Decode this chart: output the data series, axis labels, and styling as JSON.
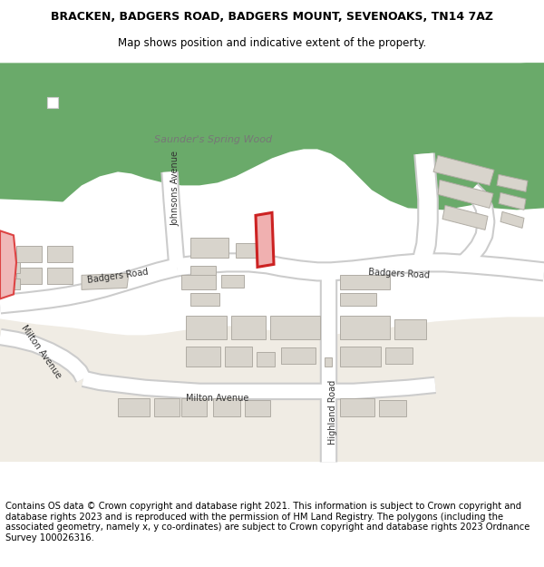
{
  "title_line1": "BRACKEN, BADGERS ROAD, BADGERS MOUNT, SEVENOAKS, TN14 7AZ",
  "title_line2": "Map shows position and indicative extent of the property.",
  "footer_text": "Contains OS data © Crown copyright and database right 2021. This information is subject to Crown copyright and database rights 2023 and is reproduced with the permission of HM Land Registry. The polygons (including the associated geometry, namely x, y co-ordinates) are subject to Crown copyright and database rights 2023 Ordnance Survey 100026316.",
  "map_bg_color": "#e8e4dd",
  "road_color": "#ffffff",
  "road_outline_color": "#cccccc",
  "green_color": "#6aaa6a",
  "building_color": "#d8d4cc",
  "building_outline": "#b0aca4",
  "highlight_fill": "#f0b0b0",
  "highlight_outline": "#cc2222",
  "title_fontsize": 9,
  "subtitle_fontsize": 8.5,
  "footer_fontsize": 7.2,
  "wood_label_color": "#888888",
  "road_label_color": "#333333"
}
